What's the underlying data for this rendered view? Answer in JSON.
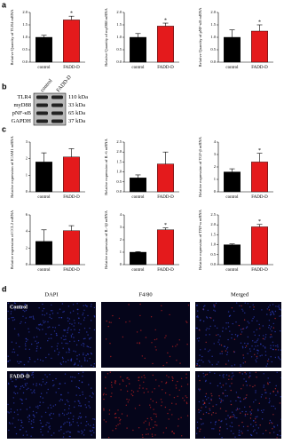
{
  "panel_letters": {
    "a": "a",
    "c": "c"
  },
  "chart_data": [
    {
      "type": "bar",
      "ylabel": "Relative Quantity of TLR4 mRNA",
      "categories": [
        "control",
        "FADD-D"
      ],
      "values": [
        1.0,
        1.7
      ],
      "errors": [
        0.08,
        0.15
      ],
      "colors": [
        "#000000",
        "#e41a1c"
      ],
      "ylim": [
        0,
        2
      ],
      "yticks": [
        {
          "value": 0,
          "label": "0.0"
        },
        {
          "value": 0.5,
          "label": "0.5"
        },
        {
          "value": 1,
          "label": "1.0"
        },
        {
          "value": 1.5,
          "label": "1.5"
        },
        {
          "value": 2,
          "label": "2.0"
        }
      ],
      "significance": "*"
    },
    {
      "type": "bar",
      "ylabel": "Relative Quantity of myD88 mRNA",
      "categories": [
        "control",
        "FADD-D"
      ],
      "values": [
        1.0,
        1.45
      ],
      "errors": [
        0.15,
        0.12
      ],
      "colors": [
        "#000000",
        "#e41a1c"
      ],
      "ylim": [
        0,
        2
      ],
      "yticks": [
        {
          "value": 0,
          "label": "0.0"
        },
        {
          "value": 0.5,
          "label": "0.5"
        },
        {
          "value": 1,
          "label": "1.0"
        },
        {
          "value": 1.5,
          "label": "1.5"
        },
        {
          "value": 2,
          "label": "2.0"
        }
      ],
      "significance": "*"
    },
    {
      "type": "bar",
      "ylabel": "Relative Quantity of pNF-κB mRNA",
      "categories": [
        "control",
        "FADD-D"
      ],
      "values": [
        1.0,
        1.25
      ],
      "errors": [
        0.3,
        0.25
      ],
      "colors": [
        "#000000",
        "#e41a1c"
      ],
      "ylim": [
        0,
        2
      ],
      "yticks": [
        {
          "value": 0,
          "label": "0.0"
        },
        {
          "value": 0.5,
          "label": "0.5"
        },
        {
          "value": 1,
          "label": "1.0"
        },
        {
          "value": 1.5,
          "label": "1.5"
        },
        {
          "value": 2,
          "label": "2.0"
        }
      ],
      "significance": "*"
    },
    {
      "type": "bar",
      "ylabel": "Relative expression of ICAM1 mRNA",
      "categories": [
        "control",
        "FADD-D"
      ],
      "values": [
        1.8,
        2.1
      ],
      "errors": [
        0.55,
        0.5
      ],
      "colors": [
        "#000000",
        "#e41a1c"
      ],
      "ylim": [
        0,
        3
      ],
      "yticks": [
        0,
        1,
        2,
        3
      ]
    },
    {
      "type": "bar",
      "ylabel": "Relative expression of IL-6 mRNA",
      "categories": [
        "control",
        "FADD-D"
      ],
      "values": [
        0.7,
        1.4
      ],
      "errors": [
        0.15,
        0.6
      ],
      "colors": [
        "#000000",
        "#e41a1c"
      ],
      "ylim": [
        0,
        2.5
      ],
      "yticks": [
        {
          "value": 0,
          "label": "0.0"
        },
        {
          "value": 0.5,
          "label": "0.5"
        },
        {
          "value": 1,
          "label": "1.0"
        },
        {
          "value": 1.5,
          "label": "1.5"
        },
        {
          "value": 2,
          "label": "2.0"
        },
        {
          "value": 2.5,
          "label": "2.5"
        }
      ]
    },
    {
      "type": "bar",
      "ylabel": "Relative expression of TGF-β mRNA",
      "categories": [
        "control",
        "FADD-D"
      ],
      "values": [
        1.6,
        2.4
      ],
      "errors": [
        0.25,
        0.7
      ],
      "colors": [
        "#000000",
        "#e41a1c"
      ],
      "ylim": [
        0,
        4
      ],
      "yticks": [
        0,
        1,
        2,
        3,
        4
      ],
      "significance": "*"
    },
    {
      "type": "bar",
      "ylabel": "Relative expression of CCL2 mRNA",
      "categories": [
        "control",
        "FADD-D"
      ],
      "values": [
        2.8,
        4.1
      ],
      "errors": [
        1.4,
        0.6
      ],
      "colors": [
        "#000000",
        "#e41a1c"
      ],
      "ylim": [
        0,
        6
      ],
      "yticks": [
        0,
        2,
        4,
        6
      ]
    },
    {
      "type": "bar",
      "ylabel": "Relative expression of IL-1β mRNA",
      "categories": [
        "control",
        "FADD-D"
      ],
      "values": [
        1.0,
        2.8
      ],
      "errors": [
        0.05,
        0.15
      ],
      "colors": [
        "#000000",
        "#e41a1c"
      ],
      "ylim": [
        0,
        4
      ],
      "yticks": [
        0,
        1,
        2,
        3,
        4
      ],
      "significance": "*"
    },
    {
      "type": "bar",
      "ylabel": "Relative expression of TNF-α mRNA",
      "categories": [
        "control",
        "FADD-D"
      ],
      "values": [
        1.0,
        1.9
      ],
      "errors": [
        0.04,
        0.12
      ],
      "colors": [
        "#000000",
        "#e41a1c"
      ],
      "ylim": [
        0,
        2.5
      ],
      "yticks": [
        {
          "value": 0,
          "label": "0.0"
        },
        {
          "value": 0.5,
          "label": "0.5"
        },
        {
          "value": 1,
          "label": "1.0"
        },
        {
          "value": 1.5,
          "label": "1.5"
        },
        {
          "value": 2,
          "label": "2.0"
        },
        {
          "value": 2.5,
          "label": "2.5"
        }
      ],
      "significance": "*"
    }
  ],
  "blot": {
    "panel": "b",
    "lanes": [
      "control",
      "FADD-D"
    ],
    "rows": [
      {
        "protein": "TLR4",
        "size": "110 kDa"
      },
      {
        "protein": "myD88",
        "size": "33 kDa"
      },
      {
        "protein": "pNF-κB",
        "size": "65 kDa"
      },
      {
        "protein": "GAPDH",
        "size": "37 kDa"
      }
    ]
  },
  "staining": {
    "panel": "d",
    "columns": [
      "DAPI",
      "F4/80",
      "Merged"
    ],
    "rows": [
      "Control",
      "FADD-D"
    ]
  }
}
